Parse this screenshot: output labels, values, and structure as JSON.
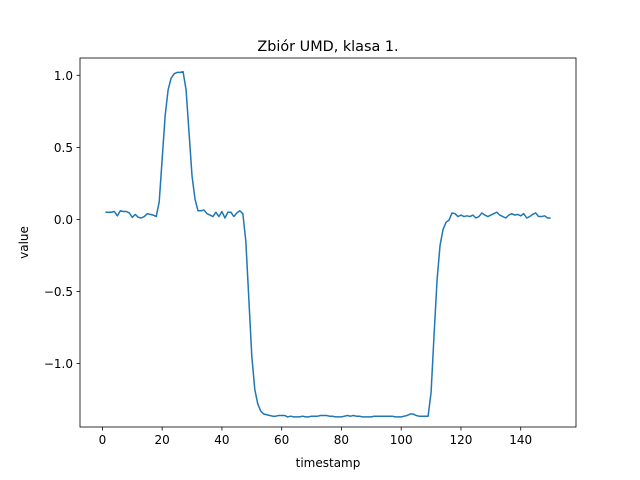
{
  "chart_data": {
    "type": "line",
    "title": "Zbiór UMD, klasa 1.",
    "xlabel": "timestamp",
    "ylabel": "value",
    "xlim": [
      -7.5,
      158.5
    ],
    "ylim": [
      -1.44,
      1.12
    ],
    "xticks": [
      0,
      20,
      40,
      60,
      80,
      100,
      120,
      140
    ],
    "xtick_labels": [
      "0",
      "20",
      "40",
      "60",
      "80",
      "100",
      "120",
      "140"
    ],
    "yticks": [
      -1.0,
      -0.5,
      0.0,
      0.5,
      1.0
    ],
    "ytick_labels": [
      "−1.0",
      "−0.5",
      "0.0",
      "0.5",
      "1.0"
    ],
    "grid": false,
    "colors": {
      "series": "#1f77b4",
      "axes": "#000000",
      "background": "#ffffff"
    },
    "series": [
      {
        "x": [
          1,
          2,
          3,
          4,
          5,
          6,
          7,
          8,
          9,
          10,
          11,
          12,
          13,
          14,
          15,
          16,
          17,
          18,
          19,
          20,
          21,
          22,
          23,
          24,
          25,
          26,
          27,
          28,
          29,
          30,
          31,
          32,
          33,
          34,
          35,
          36,
          37,
          38,
          39,
          40,
          41,
          42,
          43,
          44,
          45,
          46,
          47,
          48,
          49,
          50,
          51,
          52,
          53,
          54,
          55,
          56,
          57,
          58,
          59,
          60,
          61,
          62,
          63,
          64,
          65,
          66,
          67,
          68,
          69,
          70,
          71,
          72,
          73,
          74,
          75,
          76,
          77,
          78,
          79,
          80,
          81,
          82,
          83,
          84,
          85,
          86,
          87,
          88,
          89,
          90,
          91,
          92,
          93,
          94,
          95,
          96,
          97,
          98,
          99,
          100,
          101,
          102,
          103,
          104,
          105,
          106,
          107,
          108,
          109,
          110,
          111,
          112,
          113,
          114,
          115,
          116,
          117,
          118,
          119,
          120,
          121,
          122,
          123,
          124,
          125,
          126,
          127,
          128,
          129,
          130,
          131,
          132,
          133,
          134,
          135,
          136,
          137,
          138,
          139,
          140,
          141,
          142,
          143,
          144,
          145,
          146,
          147,
          148,
          149,
          150
        ],
        "y": [
          0.05,
          0.05,
          0.05,
          0.055,
          0.025,
          0.06,
          0.055,
          0.055,
          0.045,
          0.015,
          0.035,
          0.015,
          0.01,
          0.02,
          0.04,
          0.035,
          0.03,
          0.02,
          0.12,
          0.42,
          0.72,
          0.9,
          0.98,
          1.01,
          1.02,
          1.02,
          1.025,
          0.9,
          0.6,
          0.3,
          0.14,
          0.06,
          0.06,
          0.065,
          0.04,
          0.03,
          0.02,
          0.05,
          0.02,
          0.055,
          0.01,
          0.05,
          0.05,
          0.02,
          0.045,
          0.06,
          0.04,
          -0.15,
          -0.55,
          -0.95,
          -1.18,
          -1.28,
          -1.33,
          -1.35,
          -1.355,
          -1.36,
          -1.365,
          -1.365,
          -1.36,
          -1.36,
          -1.36,
          -1.37,
          -1.365,
          -1.37,
          -1.37,
          -1.37,
          -1.365,
          -1.37,
          -1.37,
          -1.365,
          -1.365,
          -1.365,
          -1.36,
          -1.36,
          -1.36,
          -1.365,
          -1.365,
          -1.37,
          -1.37,
          -1.37,
          -1.365,
          -1.36,
          -1.365,
          -1.36,
          -1.365,
          -1.365,
          -1.37,
          -1.37,
          -1.37,
          -1.37,
          -1.365,
          -1.365,
          -1.365,
          -1.365,
          -1.365,
          -1.365,
          -1.365,
          -1.37,
          -1.37,
          -1.37,
          -1.365,
          -1.36,
          -1.35,
          -1.35,
          -1.36,
          -1.365,
          -1.365,
          -1.365,
          -1.365,
          -1.2,
          -0.8,
          -0.42,
          -0.18,
          -0.07,
          -0.02,
          -0.005,
          0.045,
          0.04,
          0.02,
          0.03,
          0.02,
          0.025,
          0.02,
          0.03,
          0.01,
          0.02,
          0.045,
          0.03,
          0.02,
          0.03,
          0.04,
          0.05,
          0.03,
          0.02,
          0.01,
          0.03,
          0.04,
          0.03,
          0.035,
          0.025,
          0.04,
          0.01,
          0.02,
          0.035,
          0.045,
          0.02,
          0.02,
          0.025,
          0.01,
          0.01
        ]
      }
    ]
  }
}
